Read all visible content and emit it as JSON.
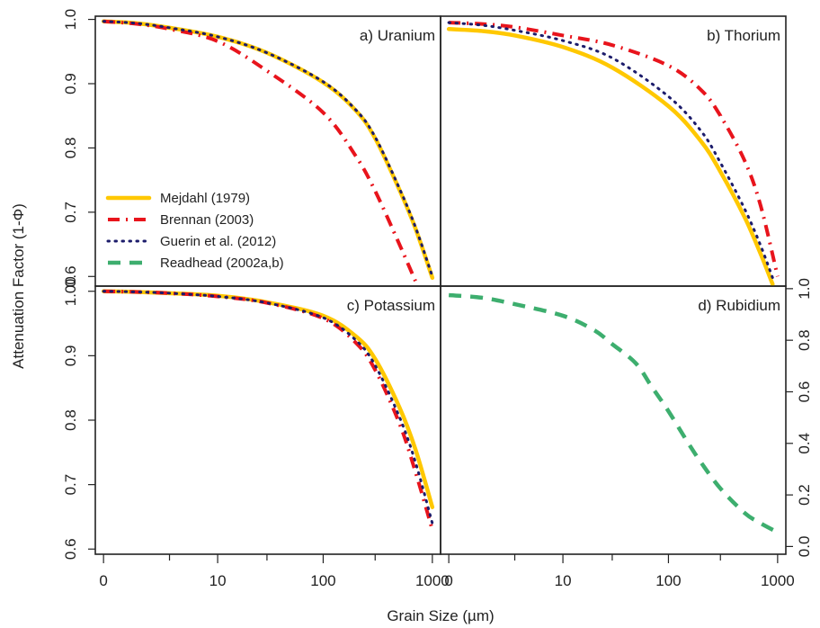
{
  "figure": {
    "xlabel": "Grain Size (µm)",
    "ylabel": "Attenuation Factor (1-Φ)"
  },
  "legend": {
    "placement": "lower-left of panel a",
    "entries": [
      {
        "name": "Mejdahl (1979)",
        "color": "#FFC800",
        "style": "solid"
      },
      {
        "name": "Brennan (2003)",
        "color": "#E8141C",
        "style": "dash-dot"
      },
      {
        "name": "Guerin et al. (2012)",
        "color": "#1C1C6B",
        "style": "dotted"
      },
      {
        "name": "Readhead (2002a,b)",
        "color": "#3DAE6E",
        "style": "dashed"
      }
    ]
  },
  "chart_data": [
    {
      "type": "line",
      "panel": "a",
      "title": "a) Uranium",
      "xscale": "log1p",
      "xticks": [
        0,
        10,
        100,
        1000
      ],
      "xtick_labels": [
        "0",
        "10",
        "100",
        "1000"
      ],
      "ylim": [
        0.585,
        1.005
      ],
      "yticks": [
        0.6,
        0.7,
        0.8,
        0.9,
        1.0
      ],
      "ytick_labels": [
        "0.6",
        "0.7",
        "0.8",
        "0.9",
        "1.0"
      ],
      "yaxis_side": "left",
      "show_xtick_labels": false,
      "series": [
        {
          "name": "Mejdahl (1979)",
          "x": [
            0,
            1,
            3,
            10,
            30,
            100,
            200,
            300,
            500,
            700,
            1000
          ],
          "y": [
            0.997,
            0.994,
            0.987,
            0.973,
            0.948,
            0.902,
            0.858,
            0.815,
            0.735,
            0.675,
            0.598
          ]
        },
        {
          "name": "Brennan (2003)",
          "x": [
            0,
            1,
            3,
            10,
            30,
            100,
            200,
            300,
            500,
            700
          ],
          "y": [
            0.997,
            0.993,
            0.985,
            0.966,
            0.92,
            0.855,
            0.787,
            0.733,
            0.65,
            0.593
          ]
        },
        {
          "name": "Guerin et al. (2012)",
          "x": [
            0,
            1,
            3,
            10,
            30,
            100,
            200,
            300,
            500,
            700,
            1000
          ],
          "y": [
            0.997,
            0.994,
            0.987,
            0.973,
            0.948,
            0.903,
            0.859,
            0.817,
            0.737,
            0.677,
            0.6
          ]
        }
      ]
    },
    {
      "type": "line",
      "panel": "b",
      "title": "b) Thorium",
      "xscale": "log1p",
      "xticks": [
        0,
        10,
        100,
        1000
      ],
      "xtick_labels": [
        "0",
        "10",
        "100",
        "1000"
      ],
      "ylim": [
        0.585,
        1.005
      ],
      "yticks": [
        0.6,
        0.7,
        0.8,
        0.9,
        1.0
      ],
      "ytick_labels": [
        "0.6",
        "0.7",
        "0.8",
        "0.9",
        "1.0"
      ],
      "yaxis_side": "none",
      "show_xtick_labels": false,
      "series": [
        {
          "name": "Mejdahl (1979)",
          "x": [
            0,
            1,
            3,
            10,
            30,
            100,
            200,
            300,
            500,
            700,
            900
          ],
          "y": [
            0.985,
            0.982,
            0.975,
            0.957,
            0.925,
            0.865,
            0.81,
            0.763,
            0.692,
            0.635,
            0.588
          ]
        },
        {
          "name": "Brennan (2003)",
          "x": [
            0,
            1,
            3,
            10,
            30,
            100,
            200,
            300,
            500,
            700,
            1000
          ],
          "y": [
            0.995,
            0.993,
            0.988,
            0.975,
            0.96,
            0.928,
            0.89,
            0.85,
            0.78,
            0.71,
            0.6
          ]
        },
        {
          "name": "Guerin et al. (2012)",
          "x": [
            0,
            1,
            3,
            10,
            30,
            100,
            200,
            300,
            500,
            700,
            900
          ],
          "y": [
            0.995,
            0.991,
            0.983,
            0.967,
            0.94,
            0.88,
            0.826,
            0.777,
            0.705,
            0.648,
            0.598
          ]
        }
      ]
    },
    {
      "type": "line",
      "panel": "c",
      "title": "c) Potassium",
      "xscale": "log1p",
      "xticks": [
        0,
        10,
        100,
        1000
      ],
      "xtick_labels": [
        "0",
        "10",
        "100",
        "1000"
      ],
      "ylim": [
        0.592,
        1.008
      ],
      "yticks": [
        0.6,
        0.7,
        0.8,
        0.9,
        1.0
      ],
      "ytick_labels": [
        "0.6",
        "0.7",
        "0.8",
        "0.9",
        "1.00"
      ],
      "yaxis_side": "left",
      "show_xtick_labels": true,
      "series": [
        {
          "name": "Mejdahl (1979)",
          "x": [
            0,
            1,
            3,
            10,
            30,
            100,
            200,
            300,
            500,
            700,
            1000
          ],
          "y": [
            1.0,
            0.999,
            0.997,
            0.993,
            0.983,
            0.962,
            0.93,
            0.895,
            0.82,
            0.755,
            0.665
          ]
        },
        {
          "name": "Brennan (2003)",
          "x": [
            0,
            1,
            3,
            10,
            30,
            100,
            200,
            300,
            500,
            700,
            1000
          ],
          "y": [
            1.0,
            0.999,
            0.997,
            0.992,
            0.982,
            0.958,
            0.92,
            0.878,
            0.795,
            0.72,
            0.63
          ]
        },
        {
          "name": "Guerin et al. (2012)",
          "x": [
            0,
            1,
            3,
            10,
            30,
            100,
            200,
            300,
            500,
            700,
            1000
          ],
          "y": [
            1.0,
            0.999,
            0.997,
            0.992,
            0.982,
            0.959,
            0.924,
            0.885,
            0.805,
            0.735,
            0.64
          ]
        }
      ]
    },
    {
      "type": "line",
      "panel": "d",
      "title": "d) Rubidium",
      "xscale": "log1p",
      "xticks": [
        0,
        10,
        100,
        1000
      ],
      "xtick_labels": [
        "0",
        "10",
        "100",
        "1000"
      ],
      "ylim": [
        -0.03,
        1.01
      ],
      "yticks": [
        0.0,
        0.2,
        0.4,
        0.6,
        0.8,
        1.0
      ],
      "ytick_labels": [
        "0.0",
        "0.2",
        "0.4",
        "0.6",
        "0.8",
        "1.0"
      ],
      "yaxis_side": "right",
      "show_xtick_labels": true,
      "series": [
        {
          "name": "Readhead (2002a,b)",
          "x": [
            0,
            1,
            3,
            10,
            20,
            30,
            50,
            70,
            100,
            150,
            200,
            300,
            500,
            700,
            1000
          ],
          "y": [
            0.975,
            0.965,
            0.94,
            0.895,
            0.84,
            0.785,
            0.71,
            0.62,
            0.525,
            0.405,
            0.325,
            0.225,
            0.13,
            0.09,
            0.055
          ]
        }
      ]
    }
  ]
}
